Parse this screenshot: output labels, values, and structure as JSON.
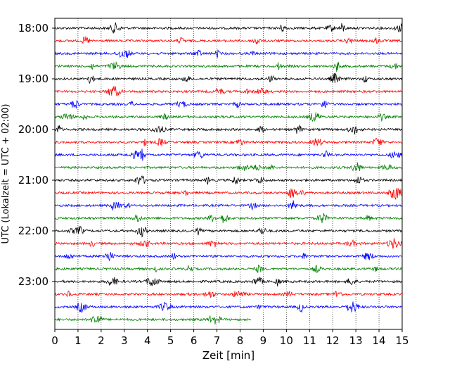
{
  "chart_data": {
    "type": "line",
    "title": "",
    "xlabel": "Zeit  [min]",
    "ylabel": "UTC (Lokalzeit = UTC + 02:00)",
    "xlim": [
      0,
      15
    ],
    "x_ticks": [
      0,
      1,
      2,
      3,
      4,
      5,
      6,
      7,
      8,
      9,
      10,
      11,
      12,
      13,
      14,
      15
    ],
    "y_ticks": [
      "18:00",
      "19:00",
      "20:00",
      "21:00",
      "22:00",
      "23:00"
    ],
    "y_tick_rows": [
      0,
      4,
      8,
      12,
      16,
      20
    ],
    "grid": "vertical dotted",
    "colors": [
      "#000000",
      "#ff0000",
      "#0000ff",
      "#008000"
    ],
    "series": [
      {
        "start": "18:00",
        "end_min": 15
      },
      {
        "start": "18:15",
        "end_min": 15
      },
      {
        "start": "18:30",
        "end_min": 15
      },
      {
        "start": "18:45",
        "end_min": 15
      },
      {
        "start": "19:00",
        "end_min": 15
      },
      {
        "start": "19:15",
        "end_min": 15
      },
      {
        "start": "19:30",
        "end_min": 15
      },
      {
        "start": "19:45",
        "end_min": 15
      },
      {
        "start": "20:00",
        "end_min": 15
      },
      {
        "start": "20:15",
        "end_min": 15
      },
      {
        "start": "20:30",
        "end_min": 15
      },
      {
        "start": "20:45",
        "end_min": 15
      },
      {
        "start": "21:00",
        "end_min": 15
      },
      {
        "start": "21:15",
        "end_min": 15
      },
      {
        "start": "21:30",
        "end_min": 15
      },
      {
        "start": "21:45",
        "end_min": 15
      },
      {
        "start": "22:00",
        "end_min": 15
      },
      {
        "start": "22:15",
        "end_min": 15
      },
      {
        "start": "22:30",
        "end_min": 15
      },
      {
        "start": "22:45",
        "end_min": 15
      },
      {
        "start": "23:00",
        "end_min": 15
      },
      {
        "start": "23:15",
        "end_min": 15
      },
      {
        "start": "23:30",
        "end_min": 15
      },
      {
        "start": "23:45",
        "end_min": 8.5
      }
    ]
  }
}
